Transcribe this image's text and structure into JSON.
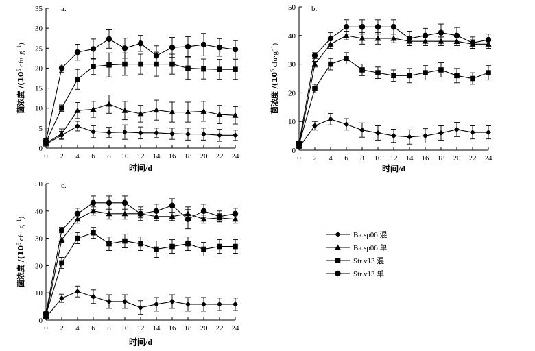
{
  "chart_data": [
    {
      "type": "line",
      "panel_label": "a.",
      "xlabel": "时间/d",
      "ylabel": "菌浓度 /(10⁵ cfu·g⁻¹)",
      "ylabel_main": "菌浓度 /(10",
      "ylabel_exp": "5",
      "ylabel_unit": " cfu·g",
      "ylabel_unit_exp": "−1",
      "ylabel_close": ")",
      "xlim": [
        0,
        24
      ],
      "ylim": [
        0,
        35
      ],
      "x_ticks": [
        0,
        2,
        4,
        6,
        8,
        10,
        12,
        14,
        16,
        18,
        20,
        22,
        24
      ],
      "y_ticks": [
        0,
        5,
        10,
        15,
        20,
        25,
        30,
        35
      ],
      "x": [
        0,
        2,
        4,
        6,
        8,
        10,
        12,
        14,
        16,
        18,
        20,
        22,
        24
      ],
      "series": [
        {
          "name": "Ba.sp06 混",
          "marker": "diamond",
          "values": [
            1.0,
            3.2,
            5.5,
            4.1,
            3.9,
            4.0,
            3.8,
            3.8,
            3.6,
            3.5,
            3.5,
            3.2,
            3.2
          ],
          "errors": [
            0.5,
            1.0,
            1.2,
            1.5,
            1.3,
            1.8,
            1.5,
            1.2,
            1.4,
            1.5,
            1.5,
            1.5,
            1.3
          ]
        },
        {
          "name": "Ba.sp06 单",
          "marker": "triangle",
          "values": [
            1.2,
            3.6,
            9.4,
            9.7,
            11.0,
            9.4,
            8.6,
            9.5,
            9.0,
            9.0,
            9.2,
            8.4,
            8.2
          ],
          "errors": [
            0.5,
            1.2,
            2.0,
            2.0,
            2.3,
            2.3,
            2.1,
            2.5,
            2.5,
            2.5,
            2.5,
            2.3,
            2.2
          ]
        },
        {
          "name": "Str.v13 混",
          "marker": "square",
          "values": [
            1.5,
            10.0,
            17.2,
            20.4,
            20.8,
            21.0,
            21.0,
            21.0,
            21.0,
            20.0,
            19.8,
            19.7,
            19.7
          ],
          "errors": [
            0.5,
            0.8,
            2.5,
            2.0,
            3.0,
            2.8,
            2.5,
            3.0,
            2.5,
            2.8,
            2.5,
            2.5,
            2.5
          ]
        },
        {
          "name": "Str.v13 单",
          "marker": "circle",
          "values": [
            1.8,
            20.0,
            24.0,
            24.8,
            27.3,
            25.0,
            26.2,
            23.1,
            25.2,
            25.4,
            25.9,
            25.2,
            24.7
          ],
          "errors": [
            0.5,
            1.0,
            2.0,
            2.5,
            2.3,
            2.5,
            2.0,
            2.5,
            2.5,
            2.5,
            2.8,
            2.2,
            2.2
          ]
        }
      ]
    },
    {
      "type": "line",
      "panel_label": "b.",
      "xlabel": "时间/d",
      "ylabel": "菌浓度 /(10⁵ cfu·g⁻¹)",
      "ylabel_main": "菌浓度 /(10",
      "ylabel_exp": "5",
      "ylabel_unit": " cfu·g",
      "ylabel_unit_exp": "−1",
      "ylabel_close": ")",
      "xlim": [
        0,
        24
      ],
      "ylim": [
        0,
        50
      ],
      "x_ticks": [
        0,
        2,
        4,
        6,
        8,
        10,
        12,
        14,
        16,
        18,
        20,
        22,
        24
      ],
      "y_ticks": [
        0,
        10,
        20,
        30,
        40,
        50
      ],
      "x": [
        0,
        2,
        4,
        6,
        8,
        10,
        12,
        14,
        16,
        18,
        20,
        22,
        24
      ],
      "series": [
        {
          "name": "Ba.sp06 混",
          "marker": "diamond",
          "values": [
            1.0,
            8.5,
            10.8,
            9.0,
            7.0,
            6.0,
            5.0,
            4.6,
            5.0,
            6.0,
            7.2,
            6.2,
            6.2
          ],
          "errors": [
            0.5,
            1.5,
            2.0,
            2.0,
            2.5,
            2.5,
            2.3,
            2.5,
            2.5,
            2.5,
            2.5,
            2.3,
            2.3
          ]
        },
        {
          "name": "Ba.sp06 单",
          "marker": "triangle",
          "values": [
            1.5,
            30.0,
            37.0,
            40.0,
            39.0,
            39.0,
            39.0,
            38.0,
            38.0,
            38.0,
            38.0,
            37.0,
            37.0
          ],
          "errors": [
            0.5,
            1.0,
            1.5,
            1.5,
            2.0,
            2.0,
            1.5,
            1.5,
            1.5,
            1.5,
            1.5,
            1.5,
            1.5
          ]
        },
        {
          "name": "Str.v13 混",
          "marker": "square",
          "values": [
            2.0,
            21.5,
            30.0,
            32.0,
            28.0,
            27.0,
            26.0,
            26.0,
            27.0,
            28.0,
            26.0,
            25.0,
            27.0
          ],
          "errors": [
            0.5,
            1.5,
            2.0,
            2.0,
            2.0,
            2.0,
            2.0,
            2.5,
            2.5,
            2.5,
            2.5,
            2.0,
            2.5
          ]
        },
        {
          "name": "Str.v13 单",
          "marker": "circle",
          "values": [
            2.5,
            33.0,
            39.0,
            43.0,
            43.0,
            43.0,
            43.0,
            39.0,
            40.0,
            41.0,
            40.0,
            37.5,
            38.5
          ],
          "errors": [
            0.5,
            1.0,
            2.0,
            2.5,
            2.5,
            2.5,
            2.5,
            2.5,
            2.5,
            3.0,
            2.8,
            2.0,
            2.0
          ]
        }
      ]
    },
    {
      "type": "line",
      "panel_label": "c.",
      "xlabel": "时间/d",
      "ylabel": "菌浓度 /(10⁵ cfu·g⁻¹)",
      "ylabel_main": "菌浓度 /(10",
      "ylabel_exp": "5",
      "ylabel_unit": " cfu·g",
      "ylabel_unit_exp": "−1",
      "ylabel_close": ")",
      "xlim": [
        0,
        24
      ],
      "ylim": [
        0,
        50
      ],
      "x_ticks": [
        0,
        2,
        4,
        6,
        8,
        10,
        12,
        14,
        16,
        18,
        20,
        22,
        24
      ],
      "y_ticks": [
        0,
        10,
        20,
        30,
        40,
        50
      ],
      "x": [
        0,
        2,
        4,
        6,
        8,
        10,
        12,
        14,
        16,
        18,
        20,
        22,
        24
      ],
      "series": [
        {
          "name": "Ba.sp06 混",
          "marker": "diamond",
          "values": [
            1.0,
            8.0,
            10.5,
            8.6,
            6.8,
            6.8,
            4.6,
            5.8,
            6.8,
            5.8,
            5.8,
            5.8,
            5.8
          ],
          "errors": [
            0.5,
            1.5,
            2.0,
            2.5,
            2.5,
            2.5,
            2.5,
            2.5,
            2.5,
            2.5,
            2.5,
            2.3,
            2.3
          ]
        },
        {
          "name": "Ba.sp06 单",
          "marker": "triangle",
          "values": [
            1.5,
            29.5,
            37.0,
            40.0,
            39.0,
            39.0,
            39.0,
            38.0,
            38.0,
            39.0,
            37.0,
            37.5,
            37.0
          ],
          "errors": [
            0.5,
            1.0,
            1.5,
            1.5,
            2.0,
            2.0,
            1.5,
            1.5,
            1.5,
            2.5,
            1.5,
            1.5,
            1.5
          ]
        },
        {
          "name": "Str.v13 混",
          "marker": "square",
          "values": [
            2.0,
            21.0,
            30.0,
            32.0,
            28.0,
            29.0,
            28.0,
            26.0,
            27.0,
            28.0,
            26.0,
            27.0,
            27.0
          ],
          "errors": [
            0.5,
            2.0,
            2.0,
            2.0,
            2.5,
            2.5,
            2.5,
            3.0,
            2.5,
            2.5,
            2.5,
            2.5,
            2.5
          ]
        },
        {
          "name": "Str.v13 单",
          "marker": "circle",
          "values": [
            2.5,
            33.0,
            39.0,
            43.0,
            43.0,
            43.0,
            39.0,
            40.0,
            42.0,
            37.0,
            40.0,
            38.0,
            39.0
          ],
          "errors": [
            0.5,
            1.0,
            2.0,
            2.5,
            2.5,
            2.5,
            2.5,
            2.5,
            2.5,
            3.5,
            2.5,
            2.0,
            2.0
          ]
        }
      ]
    }
  ],
  "legend": {
    "entries": [
      {
        "label": "Ba.sp06 混",
        "marker": "diamond"
      },
      {
        "label": "Ba.sp06 单",
        "marker": "triangle"
      },
      {
        "label": "Str.v13 混",
        "marker": "square"
      },
      {
        "label": "Str.v13 单",
        "marker": "circle"
      }
    ]
  }
}
